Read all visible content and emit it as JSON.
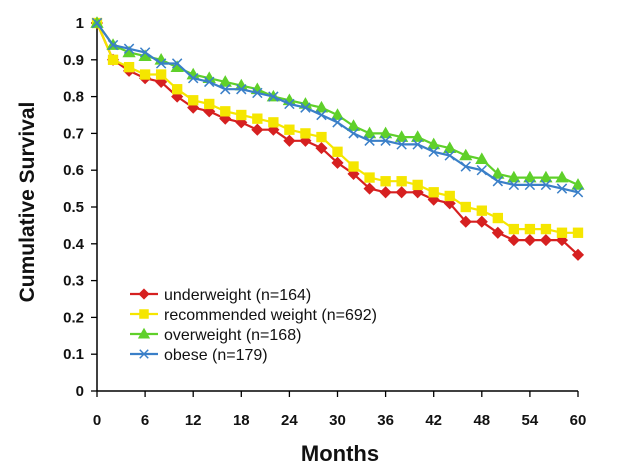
{
  "chart_data": {
    "type": "line",
    "title": "",
    "xlabel": "Months",
    "ylabel": "Cumulative Survival",
    "xlim": [
      0,
      60
    ],
    "ylim": [
      0,
      1
    ],
    "x_ticks": [
      "0",
      "6",
      "12",
      "18",
      "24",
      "30",
      "36",
      "42",
      "48",
      "54",
      "60"
    ],
    "y_ticks": [
      "0",
      "0.1",
      "0.2",
      "0.3",
      "0.4",
      "0.5",
      "0.6",
      "0.7",
      "0.8",
      "0.9",
      "1"
    ],
    "grid": false,
    "legend_position": "bottom-left",
    "series": [
      {
        "name": "underweight (n=164)",
        "color": "#d62020",
        "marker": "diamond",
        "points": [
          [
            0,
            1.0
          ],
          [
            2,
            0.9
          ],
          [
            4,
            0.87
          ],
          [
            6,
            0.85
          ],
          [
            8,
            0.84
          ],
          [
            10,
            0.8
          ],
          [
            12,
            0.77
          ],
          [
            14,
            0.76
          ],
          [
            16,
            0.74
          ],
          [
            18,
            0.73
          ],
          [
            20,
            0.71
          ],
          [
            22,
            0.71
          ],
          [
            24,
            0.68
          ],
          [
            26,
            0.68
          ],
          [
            28,
            0.66
          ],
          [
            30,
            0.62
          ],
          [
            32,
            0.59
          ],
          [
            34,
            0.55
          ],
          [
            36,
            0.54
          ],
          [
            38,
            0.54
          ],
          [
            40,
            0.54
          ],
          [
            42,
            0.52
          ],
          [
            44,
            0.51
          ],
          [
            46,
            0.46
          ],
          [
            48,
            0.46
          ],
          [
            50,
            0.43
          ],
          [
            52,
            0.41
          ],
          [
            54,
            0.41
          ],
          [
            56,
            0.41
          ],
          [
            58,
            0.41
          ],
          [
            60,
            0.37
          ]
        ]
      },
      {
        "name": "recommended weight (n=692)",
        "color": "#f5e600",
        "marker": "square",
        "points": [
          [
            0,
            1.0
          ],
          [
            2,
            0.9
          ],
          [
            4,
            0.88
          ],
          [
            6,
            0.86
          ],
          [
            8,
            0.86
          ],
          [
            10,
            0.82
          ],
          [
            12,
            0.79
          ],
          [
            14,
            0.78
          ],
          [
            16,
            0.76
          ],
          [
            18,
            0.75
          ],
          [
            20,
            0.74
          ],
          [
            22,
            0.73
          ],
          [
            24,
            0.71
          ],
          [
            26,
            0.7
          ],
          [
            28,
            0.69
          ],
          [
            30,
            0.65
          ],
          [
            32,
            0.61
          ],
          [
            34,
            0.58
          ],
          [
            36,
            0.57
          ],
          [
            38,
            0.57
          ],
          [
            40,
            0.56
          ],
          [
            42,
            0.54
          ],
          [
            44,
            0.53
          ],
          [
            46,
            0.5
          ],
          [
            48,
            0.49
          ],
          [
            50,
            0.47
          ],
          [
            52,
            0.44
          ],
          [
            54,
            0.44
          ],
          [
            56,
            0.44
          ],
          [
            58,
            0.43
          ],
          [
            60,
            0.43
          ]
        ]
      },
      {
        "name": "overweight (n=168)",
        "color": "#5fd02a",
        "marker": "triangle",
        "points": [
          [
            0,
            1.0
          ],
          [
            2,
            0.94
          ],
          [
            4,
            0.92
          ],
          [
            6,
            0.91
          ],
          [
            8,
            0.9
          ],
          [
            10,
            0.88
          ],
          [
            12,
            0.86
          ],
          [
            14,
            0.85
          ],
          [
            16,
            0.84
          ],
          [
            18,
            0.83
          ],
          [
            20,
            0.82
          ],
          [
            22,
            0.8
          ],
          [
            24,
            0.79
          ],
          [
            26,
            0.78
          ],
          [
            28,
            0.77
          ],
          [
            30,
            0.75
          ],
          [
            32,
            0.72
          ],
          [
            34,
            0.7
          ],
          [
            36,
            0.7
          ],
          [
            38,
            0.69
          ],
          [
            40,
            0.69
          ],
          [
            42,
            0.67
          ],
          [
            44,
            0.66
          ],
          [
            46,
            0.64
          ],
          [
            48,
            0.63
          ],
          [
            50,
            0.59
          ],
          [
            52,
            0.58
          ],
          [
            54,
            0.58
          ],
          [
            56,
            0.58
          ],
          [
            58,
            0.58
          ],
          [
            60,
            0.56
          ]
        ]
      },
      {
        "name": "obese (n=179)",
        "color": "#3a7fc8",
        "marker": "x",
        "points": [
          [
            0,
            1.0
          ],
          [
            2,
            0.94
          ],
          [
            4,
            0.93
          ],
          [
            6,
            0.92
          ],
          [
            8,
            0.89
          ],
          [
            10,
            0.89
          ],
          [
            12,
            0.85
          ],
          [
            14,
            0.84
          ],
          [
            16,
            0.82
          ],
          [
            18,
            0.82
          ],
          [
            20,
            0.81
          ],
          [
            22,
            0.8
          ],
          [
            24,
            0.78
          ],
          [
            26,
            0.77
          ],
          [
            28,
            0.75
          ],
          [
            30,
            0.73
          ],
          [
            32,
            0.7
          ],
          [
            34,
            0.68
          ],
          [
            36,
            0.68
          ],
          [
            38,
            0.67
          ],
          [
            40,
            0.67
          ],
          [
            42,
            0.65
          ],
          [
            44,
            0.64
          ],
          [
            46,
            0.61
          ],
          [
            48,
            0.6
          ],
          [
            50,
            0.57
          ],
          [
            52,
            0.56
          ],
          [
            54,
            0.56
          ],
          [
            56,
            0.56
          ],
          [
            58,
            0.55
          ],
          [
            60,
            0.54
          ]
        ]
      }
    ]
  }
}
